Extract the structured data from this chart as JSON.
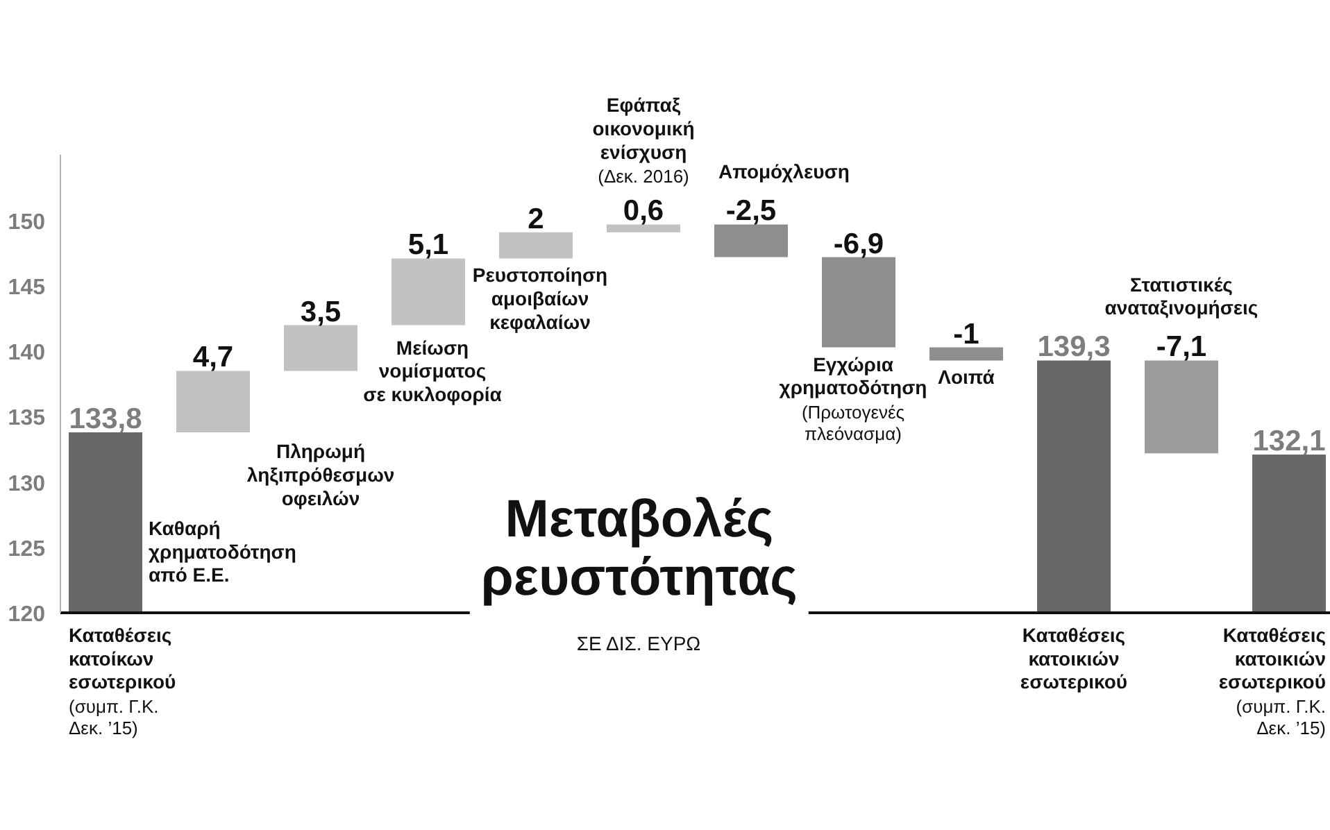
{
  "chart_data": {
    "type": "bar",
    "title": "Μεταβολές ρευστότητας",
    "subtitle": "ΣΕ ΔΙΣ. ΕΥΡΩ",
    "categories": [
      "Καταθέσεις κατοίκων εσωτερικού (συμπ. Γ.Κ. Δεκ. ’15)",
      "Καθαρή χρηματοδότηση από Ε.Ε.",
      "Πληρωμή ληξιπρόθεσμων οφειλών",
      "Μείωση νομίσματος σε κυκλοφορία",
      "Ρευστοποίηση αμοιβαίων κεφαλαίων",
      "Εφάπαξ οικονομική ενίσχυση (Δεκ. 2016)",
      "Απομόχλευση",
      "Εγχώρια χρηματοδότηση (Πρωτογενές πλεόνασμα)",
      "Λοιπά",
      "Καταθέσεις κατοικιών εσωτερικού",
      "Στατιστικές αναταξινομήσεις",
      "Καταθέσεις κατοικιών εσωτερικού (συμπ. Γ.Κ. Δεκ. ’15)"
    ],
    "values": [
      133.8,
      4.7,
      3.5,
      5.1,
      2,
      0.6,
      -2.5,
      -6.9,
      -1,
      139.3,
      -7.1,
      132.1
    ],
    "base": [
      null,
      133.8,
      138.5,
      142,
      147.1,
      149.1,
      149.7,
      147.2,
      140.3,
      null,
      139.3,
      null
    ],
    "colors": [
      "#686868",
      "#c2c2c2",
      "#c2c2c2",
      "#c2c2c2",
      "#c2c2c2",
      "#c2c2c2",
      "#8e8e8e",
      "#8e8e8e",
      "#8e8e8e",
      "#686868",
      "#9c9c9c",
      "#686868"
    ],
    "value_labels": [
      "133,8",
      "4,7",
      "3,5",
      "5,1",
      "2",
      "0,6",
      "-2,5",
      "-6,9",
      "-1",
      "139,3",
      "-7,1",
      "132,1"
    ],
    "ylim": [
      120,
      155
    ],
    "yticks": [
      120,
      125,
      130,
      135,
      140,
      145,
      150
    ],
    "grid": false
  }
}
